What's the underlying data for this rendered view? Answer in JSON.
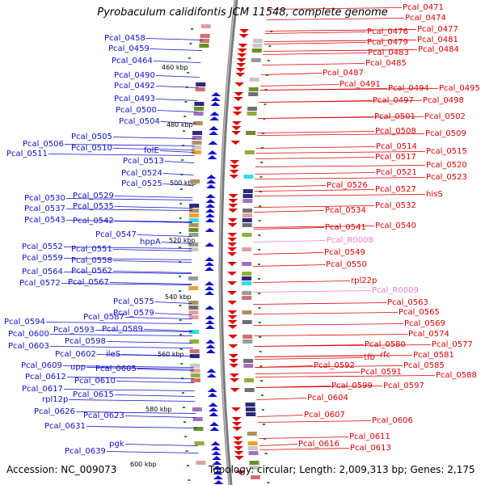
{
  "title": "Pyrobaculum calidifontis JCM 11548, complete genome",
  "footer": {
    "accession": "Accession: NC_009073",
    "topology": "Topology: circular; Length: 2,009,313 bp; Genes: 2,175"
  },
  "colors": {
    "forward": "#1010cc",
    "reverse": "#dd0000",
    "rna": "#f080c0",
    "backbone": "#888888",
    "tick": "#228822"
  },
  "scale_ticks": [
    "460 kbp",
    "480 kbp",
    "500 kbp",
    "520 kbp",
    "540 kbp",
    "560 kbp",
    "580 kbp",
    "600 kbp"
  ],
  "left_genes": [
    "Pcal_0458",
    "Pcal_0459",
    "Pcal_0464",
    "Pcal_0490",
    "Pcal_0492",
    "Pcal_0493",
    "Pcal_0500",
    "Pcal_0504",
    "Pcal_0505",
    "Pcal_0506",
    "Pcal_0510",
    "Pcal_0511",
    "folE",
    "Pcal_0513",
    "Pcal_0524",
    "Pcal_0525",
    "Pcal_0530",
    "Pcal_0529",
    "Pcal_0537",
    "Pcal_0535",
    "Pcal_0543",
    "Pcal_0542",
    "Pcal_0547",
    "hppA",
    "Pcal_0552",
    "Pcal_0551",
    "Pcal_0559",
    "Pcal_0558",
    "Pcal_0564",
    "Pcal_0562",
    "Pcal_0572",
    "Pcal_0567",
    "Pcal_0575",
    "Pcal_0579",
    "Pcal_0594",
    "Pcal_0587",
    "Pcal_0593",
    "Pcal_0589",
    "Pcal_0600",
    "Pcal_0598",
    "Pcal_0603",
    "Pcal_0602",
    "ileS",
    "Pcal_0609",
    "upp",
    "Pcal_0605",
    "Pcal_0612",
    "Pcal_0610",
    "Pcal_0617",
    "Pcal_0615",
    "rpl12p",
    "Pcal_0626",
    "Pcal_0623",
    "Pcal_0631",
    "pgk",
    "Pcal_0639"
  ],
  "right_genes": [
    "Pcal_0471",
    "Pcal_0474",
    "Pcal_0476",
    "Pcal_0477",
    "Pcal_0479",
    "Pcal_0481",
    "Pcal_0483",
    "Pcal_0484",
    "Pcal_0485",
    "Pcal_0487",
    "Pcal_0491",
    "Pcal_0494",
    "Pcal_0495",
    "Pcal_0497",
    "Pcal_0498",
    "Pcal_0501",
    "Pcal_0502",
    "Pcal_0508",
    "Pcal_0509",
    "Pcal_0514",
    "Pcal_0515",
    "Pcal_0517",
    "Pcal_0520",
    "Pcal_0521",
    "Pcal_0523",
    "Pcal_0526",
    "Pcal_0527",
    "hisS",
    "Pcal_0532",
    "Pcal_0534",
    "Pcal_0541",
    "Pcal_0540",
    "Pcal_R0008",
    "Pcal_0549",
    "Pcal_0550",
    "rpl22p",
    "Pcal_R0009",
    "Pcal_0563",
    "Pcal_0565",
    "Pcal_0569",
    "Pcal_0574",
    "Pcal_0577",
    "Pcal_0580",
    "rfc",
    "Pcal_0581",
    "tfb",
    "Pcal_0585",
    "Pcal_0592",
    "Pcal_0591",
    "Pcal_0588",
    "Pcal_0599",
    "Pcal_0597",
    "Pcal_0604",
    "Pcal_0607",
    "Pcal_0606",
    "Pcal_0611",
    "Pcal_0616",
    "Pcal_0613"
  ]
}
